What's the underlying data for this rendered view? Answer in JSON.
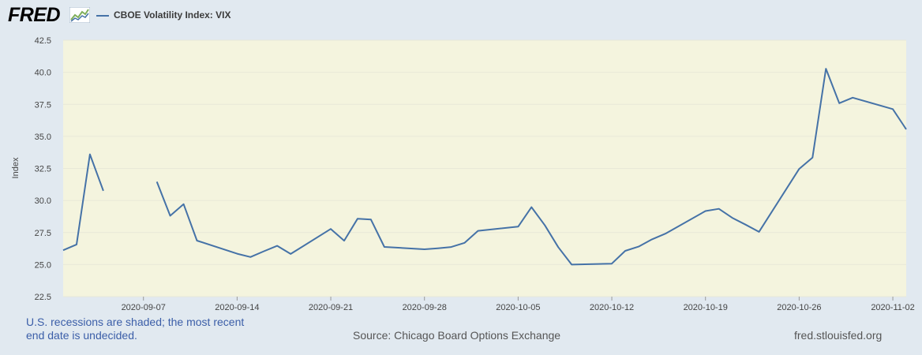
{
  "header": {
    "logo_text": "FRED",
    "logo_icon": "trend-graph-icon",
    "legend_label": "CBOE Volatility Index: VIX"
  },
  "colors": {
    "page_background": "#e1e9f0",
    "plot_background": "#f4f4de",
    "series": "#4572a7",
    "gridline": "#e8e8d8"
  },
  "footer": {
    "recession_note": "U.S. recessions are shaded; the most recent end date is undecided.",
    "source": "Source: Chicago Board Options Exchange",
    "site": "fred.stlouisfed.org"
  },
  "chart_data": {
    "type": "line",
    "title": "",
    "xlabel": "",
    "ylabel": "Index",
    "ylim": [
      22.5,
      42.5
    ],
    "xlim": [
      "2020-09-01",
      "2020-11-03"
    ],
    "yticks": [
      22.5,
      25.0,
      27.5,
      30.0,
      32.5,
      35.0,
      37.5,
      40.0,
      42.5
    ],
    "ytick_labels": [
      "22.5",
      "25.0",
      "27.5",
      "30.0",
      "32.5",
      "35.0",
      "37.5",
      "40.0",
      "42.5"
    ],
    "xticks": [
      "2020-09-07",
      "2020-09-14",
      "2020-09-21",
      "2020-09-28",
      "2020-10-05",
      "2020-10-12",
      "2020-10-19",
      "2020-10-26",
      "2020-11-02"
    ],
    "xtick_labels": [
      "2020-09-07",
      "2020-09-14",
      "2020-09-21",
      "2020-09-28",
      "2020-10-05",
      "2020-10-12",
      "2020-10-19",
      "2020-10-26",
      "2020-11-02"
    ],
    "grid": "horizontal",
    "legend_position": "top-left",
    "series": [
      {
        "name": "CBOE Volatility Index: VIX",
        "color": "#4572a7",
        "x": [
          "2020-09-01",
          "2020-09-02",
          "2020-09-03",
          "2020-09-04",
          "2020-09-07",
          "2020-09-08",
          "2020-09-09",
          "2020-09-10",
          "2020-09-11",
          "2020-09-14",
          "2020-09-15",
          "2020-09-16",
          "2020-09-17",
          "2020-09-18",
          "2020-09-21",
          "2020-09-22",
          "2020-09-23",
          "2020-09-24",
          "2020-09-25",
          "2020-09-28",
          "2020-09-29",
          "2020-09-30",
          "2020-10-01",
          "2020-10-02",
          "2020-10-05",
          "2020-10-06",
          "2020-10-07",
          "2020-10-08",
          "2020-10-09",
          "2020-10-12",
          "2020-10-13",
          "2020-10-14",
          "2020-10-15",
          "2020-10-16",
          "2020-10-19",
          "2020-10-20",
          "2020-10-21",
          "2020-10-22",
          "2020-10-23",
          "2020-10-26",
          "2020-10-27",
          "2020-10-28",
          "2020-10-29",
          "2020-10-30",
          "2020-11-02",
          "2020-11-03"
        ],
        "y": [
          26.12,
          26.57,
          33.6,
          30.75,
          null,
          31.46,
          28.81,
          29.71,
          26.87,
          25.85,
          25.59,
          26.04,
          26.46,
          25.83,
          27.78,
          26.86,
          28.58,
          28.51,
          26.38,
          26.19,
          26.27,
          26.37,
          26.7,
          27.63,
          27.96,
          29.48,
          28.06,
          26.36,
          25.0,
          25.07,
          26.07,
          26.4,
          26.97,
          27.41,
          29.18,
          29.35,
          28.65,
          28.11,
          27.55,
          32.46,
          33.35,
          40.28,
          37.59,
          38.02,
          37.13,
          35.55
        ]
      }
    ]
  }
}
